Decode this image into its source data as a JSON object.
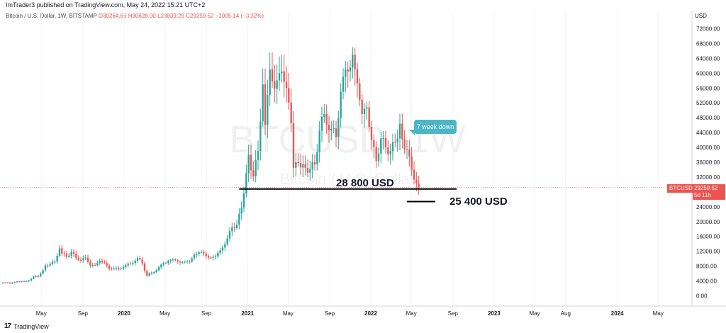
{
  "header": {
    "published": "ImTrader3 published on TradingView.com, May 24, 2022 15:21 UTC+2"
  },
  "ohlc": {
    "symbol": "Bitcoin / U.S. Dollar, 1W, BITSTAMP",
    "open": "O30264.66",
    "high": "H30628.00",
    "low": "L28839.29",
    "close": "C29259.52",
    "change": "−1005.14 (−3.32%)"
  },
  "footer": {
    "logo": "17",
    "brand": "TradingView"
  },
  "watermark": {
    "symbol": "BTCUSD, 1W",
    "name": "Bitcoin / U.S. Dollar"
  },
  "annotations": {
    "callout": "7 week down",
    "level_1": "28 800 USD",
    "level_2": "25 400 USD"
  },
  "price_tag": {
    "symbol": "BTCUSD",
    "value": "29259.52",
    "countdown": "5d 11h"
  },
  "colors": {
    "up": "#26a69a",
    "down": "#ef5350",
    "callout": "#4db6c6",
    "line": "#000000"
  },
  "chart_data": {
    "type": "candlestick",
    "timeframe": "1W",
    "ylabel": "USD",
    "ylim": [
      -2000,
      74000
    ],
    "yticks": [
      0,
      4000,
      8000,
      12000,
      16000,
      20000,
      24000,
      28000,
      32000,
      36000,
      40000,
      44000,
      48000,
      52000,
      56000,
      60000,
      64000,
      68000,
      72000
    ],
    "ytick_labels": [
      "0.00",
      "4000.00",
      "8000.00",
      "12000.00",
      "16000.00",
      "20000.00",
      "24000.00",
      "28000.00",
      "32000.00",
      "36000.00",
      "40000.00",
      "44000.00",
      "48000.00",
      "52000.00",
      "56000.00",
      "60000.00",
      "64000.00",
      "68000.00",
      "72000.00"
    ],
    "x_start": "2019-01-07",
    "x_end": "2024-08-05",
    "xticks": [
      {
        "label": "May",
        "date": "2019-05-01",
        "bold": false
      },
      {
        "label": "Sep",
        "date": "2019-09-01",
        "bold": false
      },
      {
        "label": "2020",
        "date": "2020-01-01",
        "bold": true
      },
      {
        "label": "May",
        "date": "2020-05-01",
        "bold": false
      },
      {
        "label": "Sep",
        "date": "2020-09-01",
        "bold": false
      },
      {
        "label": "2021",
        "date": "2021-01-01",
        "bold": true
      },
      {
        "label": "May",
        "date": "2021-05-01",
        "bold": false
      },
      {
        "label": "Sep",
        "date": "2021-09-01",
        "bold": false
      },
      {
        "label": "2022",
        "date": "2022-01-01",
        "bold": true
      },
      {
        "label": "May",
        "date": "2022-05-01",
        "bold": false
      },
      {
        "label": "Sep",
        "date": "2022-09-01",
        "bold": false
      },
      {
        "label": "2023",
        "date": "2023-01-01",
        "bold": true
      },
      {
        "label": "May",
        "date": "2023-05-01",
        "bold": false
      },
      {
        "label": "Aug",
        "date": "2023-08-01",
        "bold": false
      },
      {
        "label": "2024",
        "date": "2024-01-01",
        "bold": true
      },
      {
        "label": "May",
        "date": "2024-05-01",
        "bold": false
      }
    ],
    "weekly_closes": [
      {
        "d": "2019-01-07",
        "c": 3600
      },
      {
        "d": "2019-01-28",
        "c": 3450
      },
      {
        "d": "2019-02-18",
        "c": 3900
      },
      {
        "d": "2019-03-04",
        "c": 3850
      },
      {
        "d": "2019-03-25",
        "c": 4100
      },
      {
        "d": "2019-04-08",
        "c": 5200
      },
      {
        "d": "2019-04-22",
        "c": 5300
      },
      {
        "d": "2019-05-06",
        "c": 6900
      },
      {
        "d": "2019-05-13",
        "c": 8200
      },
      {
        "d": "2019-05-27",
        "c": 8600
      },
      {
        "d": "2019-06-10",
        "c": 9200
      },
      {
        "d": "2019-06-17",
        "c": 10800
      },
      {
        "d": "2019-06-24",
        "c": 12800
      },
      {
        "d": "2019-07-01",
        "c": 11400
      },
      {
        "d": "2019-07-15",
        "c": 10500
      },
      {
        "d": "2019-07-29",
        "c": 11800
      },
      {
        "d": "2019-08-12",
        "c": 10200
      },
      {
        "d": "2019-08-26",
        "c": 9600
      },
      {
        "d": "2019-09-09",
        "c": 10300
      },
      {
        "d": "2019-09-23",
        "c": 8200
      },
      {
        "d": "2019-10-07",
        "c": 8300
      },
      {
        "d": "2019-10-21",
        "c": 9400
      },
      {
        "d": "2019-11-04",
        "c": 8800
      },
      {
        "d": "2019-11-18",
        "c": 7300
      },
      {
        "d": "2019-12-02",
        "c": 7400
      },
      {
        "d": "2019-12-16",
        "c": 7200
      },
      {
        "d": "2020-01-06",
        "c": 8200
      },
      {
        "d": "2020-01-20",
        "c": 8600
      },
      {
        "d": "2020-02-10",
        "c": 10200
      },
      {
        "d": "2020-02-24",
        "c": 8700
      },
      {
        "d": "2020-03-09",
        "c": 5400
      },
      {
        "d": "2020-03-23",
        "c": 6300
      },
      {
        "d": "2020-04-06",
        "c": 6900
      },
      {
        "d": "2020-04-27",
        "c": 8800
      },
      {
        "d": "2020-05-11",
        "c": 9400
      },
      {
        "d": "2020-06-01",
        "c": 9600
      },
      {
        "d": "2020-06-22",
        "c": 9100
      },
      {
        "d": "2020-07-13",
        "c": 9200
      },
      {
        "d": "2020-07-27",
        "c": 11100
      },
      {
        "d": "2020-08-17",
        "c": 11800
      },
      {
        "d": "2020-09-07",
        "c": 10300
      },
      {
        "d": "2020-09-28",
        "c": 10600
      },
      {
        "d": "2020-10-19",
        "c": 13000
      },
      {
        "d": "2020-11-02",
        "c": 15500
      },
      {
        "d": "2020-11-16",
        "c": 18500
      },
      {
        "d": "2020-11-30",
        "c": 19200
      },
      {
        "d": "2020-12-14",
        "c": 23800
      },
      {
        "d": "2020-12-28",
        "c": 33000
      },
      {
        "d": "2021-01-04",
        "c": 38000
      },
      {
        "d": "2021-01-18",
        "c": 32200
      },
      {
        "d": "2021-02-01",
        "c": 39000
      },
      {
        "d": "2021-02-08",
        "c": 47000
      },
      {
        "d": "2021-02-15",
        "c": 57000
      },
      {
        "d": "2021-02-22",
        "c": 46000
      },
      {
        "d": "2021-03-08",
        "c": 61000
      },
      {
        "d": "2021-03-22",
        "c": 55800
      },
      {
        "d": "2021-04-05",
        "c": 60000
      },
      {
        "d": "2021-04-12",
        "c": 60500
      },
      {
        "d": "2021-04-26",
        "c": 56000
      },
      {
        "d": "2021-05-10",
        "c": 46500
      },
      {
        "d": "2021-05-17",
        "c": 34500
      },
      {
        "d": "2021-05-31",
        "c": 35800
      },
      {
        "d": "2021-06-14",
        "c": 35500
      },
      {
        "d": "2021-06-21",
        "c": 34500
      },
      {
        "d": "2021-07-05",
        "c": 34200
      },
      {
        "d": "2021-07-19",
        "c": 35400
      },
      {
        "d": "2021-08-02",
        "c": 44500
      },
      {
        "d": "2021-08-16",
        "c": 49000
      },
      {
        "d": "2021-09-06",
        "c": 45000
      },
      {
        "d": "2021-09-20",
        "c": 42800
      },
      {
        "d": "2021-10-04",
        "c": 55000
      },
      {
        "d": "2021-10-18",
        "c": 61000
      },
      {
        "d": "2021-11-01",
        "c": 61500
      },
      {
        "d": "2021-11-08",
        "c": 65000
      },
      {
        "d": "2021-11-22",
        "c": 57300
      },
      {
        "d": "2021-12-06",
        "c": 49000
      },
      {
        "d": "2021-12-20",
        "c": 50800
      },
      {
        "d": "2022-01-03",
        "c": 42000
      },
      {
        "d": "2022-01-17",
        "c": 36300
      },
      {
        "d": "2022-01-31",
        "c": 42400
      },
      {
        "d": "2022-02-14",
        "c": 40000
      },
      {
        "d": "2022-02-28",
        "c": 39000
      },
      {
        "d": "2022-03-14",
        "c": 41300
      },
      {
        "d": "2022-03-28",
        "c": 46400
      },
      {
        "d": "2022-04-04",
        "c": 42200
      },
      {
        "d": "2022-04-18",
        "c": 39500
      },
      {
        "d": "2022-04-25",
        "c": 37600
      },
      {
        "d": "2022-05-02",
        "c": 34000
      },
      {
        "d": "2022-05-09",
        "c": 31300
      },
      {
        "d": "2022-05-16",
        "c": 30300
      },
      {
        "d": "2022-05-23",
        "c": 29259.52
      }
    ],
    "horizontal_lines": [
      {
        "label": "28 800 USD",
        "price": 28800,
        "from": "2020-12-07",
        "to": "2022-09-12"
      },
      {
        "label": "25 400 USD",
        "price": 25400,
        "from": "2022-04-18",
        "to": "2022-07-11"
      }
    ],
    "last_price": 29259.52
  }
}
